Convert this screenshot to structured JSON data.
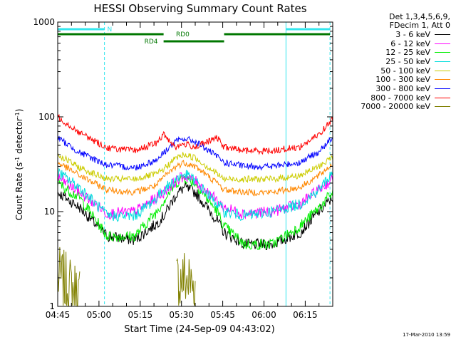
{
  "chart_data": {
    "type": "line",
    "title": "HESSI Observing Summary Count Rates",
    "xlabel": "Start Time (24-Sep-09 04:43:02)",
    "ylabel_main": "Count Rate (s",
    "ylabel_sup1": "-1",
    "ylabel_mid": " detector",
    "ylabel_sup2": "-1",
    "ylabel_end": ")",
    "x_ticks": [
      "04:45",
      "05:00",
      "05:15",
      "05:30",
      "05:45",
      "06:00",
      "06:15"
    ],
    "x_tick_minutes": [
      2,
      17,
      32,
      47,
      62,
      77,
      92
    ],
    "xlim_minutes": [
      2,
      102
    ],
    "ylim": [
      1,
      1000
    ],
    "yscale": "log",
    "y_ticks": [
      "1",
      "10",
      "100",
      "1000"
    ],
    "y_tick_values": [
      1,
      10,
      100,
      1000
    ],
    "legend": {
      "header1": "Det 1,3,4,5,6,9,",
      "header2": "FDecim 1, Att 0",
      "placement": "right"
    },
    "annotations": {
      "night_label": "N",
      "rd0_label": "RD0",
      "rd4_label": "RD4",
      "night_color": "#33e6ee",
      "rd_color": "#007700",
      "dashed_minutes": [
        19,
        101
      ],
      "solid_minutes": [
        2,
        85
      ]
    },
    "x_minutes": [
      2,
      10,
      20,
      30,
      38,
      40.5,
      45,
      48,
      52,
      60,
      62.5,
      70,
      80,
      90,
      97,
      102
    ],
    "series": [
      {
        "name": "3 - 6 keV",
        "color": "#000000",
        "values": [
          16,
          11,
          5.5,
          5,
          7.5,
          9,
          15,
          18,
          16,
          8,
          6,
          4.5,
          4.5,
          6,
          10,
          14
        ]
      },
      {
        "name": "6 - 12 keV",
        "color": "#ff00ff",
        "values": [
          23,
          16,
          9.5,
          10,
          14,
          16,
          21,
          24,
          21,
          13,
          11,
          9.5,
          10,
          12,
          17,
          22
        ]
      },
      {
        "name": "12 - 25 keV",
        "color": "#00ee00",
        "values": [
          20,
          14,
          5.5,
          5.5,
          10,
          13,
          20,
          23,
          20,
          10,
          7,
          4.5,
          4.5,
          7,
          11,
          16
        ]
      },
      {
        "name": "25 - 50 keV",
        "color": "#00dddd",
        "values": [
          26,
          18,
          9,
          9,
          14,
          17,
          22,
          25,
          21,
          12,
          10,
          9,
          10,
          12,
          17,
          26
        ]
      },
      {
        "name": "50 - 100 keV",
        "color": "#cccc00",
        "values": [
          40,
          29,
          22,
          22,
          25,
          28,
          37,
          40,
          37,
          25,
          22,
          22,
          22,
          24,
          30,
          38
        ]
      },
      {
        "name": "100 - 300 keV",
        "color": "#ff8800",
        "values": [
          33,
          24,
          17,
          16,
          19,
          23,
          30,
          33,
          30,
          20,
          17,
          16,
          16,
          18,
          24,
          32
        ]
      },
      {
        "name": "300 - 800 keV",
        "color": "#0000ff",
        "values": [
          60,
          42,
          31,
          29,
          35,
          42,
          55,
          59,
          55,
          38,
          33,
          30,
          30,
          33,
          43,
          60
        ]
      },
      {
        "name": "800 - 7000 keV",
        "color": "#ff0000",
        "values": [
          100,
          68,
          47,
          44,
          53,
          65,
          48,
          52,
          48,
          60,
          48,
          44,
          44,
          48,
          65,
          95
        ]
      },
      {
        "name": "7000 - 20000 keV",
        "color": "#808000",
        "values": [
          2,
          1.3,
          0,
          0,
          0,
          0,
          1.8,
          2,
          1.6,
          0,
          0,
          0,
          0,
          0,
          0,
          0
        ]
      }
    ]
  },
  "timestamp": "17-Mar-2010 13:59"
}
